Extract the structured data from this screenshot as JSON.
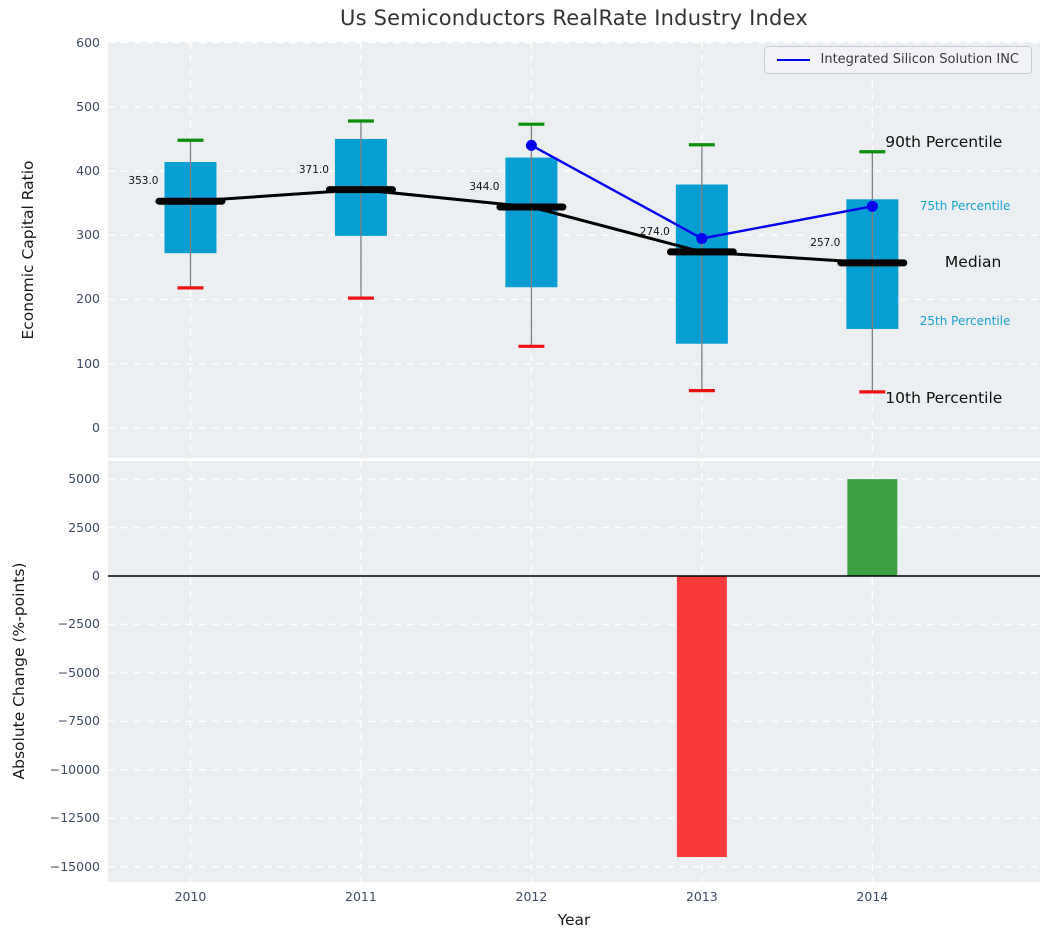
{
  "title": "Us Semiconductors RealRate Industry Index",
  "legend": {
    "label": "Integrated Silicon Solution INC"
  },
  "colors": {
    "panel_bg": "#eceff1",
    "grid": "#ffffff",
    "tick_text": "#3d4c63",
    "box_fill": "#079fd3",
    "whisker": "#808080",
    "cap_top": "#0a8f0a",
    "cap_bottom": "#ee1111",
    "median_line": "#000000",
    "company_line": "#0000ee",
    "bar_negative": "#fa3b3b",
    "bar_positive": "#3da043",
    "annotation_minor": "#17a2cf",
    "zero_line": "#000000"
  },
  "chart_data": [
    {
      "type": "boxplot+line",
      "title": "Us Semiconductors RealRate Industry Index",
      "ylabel": "Economic Capital Ratio",
      "yticks": [
        0,
        100,
        200,
        300,
        400,
        500,
        600
      ],
      "ylim": [
        -47,
        601
      ],
      "grid": "white dashed on gray panel",
      "categories": [
        "2010",
        "2011",
        "2012",
        "2013",
        "2014"
      ],
      "boxes": [
        {
          "year": "2010",
          "p10": 218,
          "q1": 272,
          "median": 353,
          "q3": 414,
          "p90": 448
        },
        {
          "year": "2011",
          "p10": 202,
          "q1": 299,
          "median": 371,
          "q3": 450,
          "p90": 478
        },
        {
          "year": "2012",
          "p10": 127,
          "q1": 219,
          "median": 344,
          "q3": 421,
          "p90": 473
        },
        {
          "year": "2013",
          "p10": 58,
          "q1": 131,
          "median": 274,
          "q3": 379,
          "p90": 441
        },
        {
          "year": "2014",
          "p10": 56,
          "q1": 154,
          "median": 257,
          "q3": 356,
          "p90": 430
        }
      ],
      "median_labels": [
        "353.0",
        "371.0",
        "344.0",
        "274.0",
        "257.0"
      ],
      "series": [
        {
          "name": "Integrated Silicon Solution INC",
          "x": [
            "2012",
            "2013",
            "2014"
          ],
          "values": [
            440,
            295,
            345
          ]
        }
      ],
      "annotations": [
        {
          "text": "90th Percentile",
          "value": 446,
          "style": "major",
          "xfrac": 0.834
        },
        {
          "text": "75th Percentile",
          "value": 346,
          "style": "minor",
          "xfrac": 0.871
        },
        {
          "text": "Median",
          "value": 259,
          "style": "major",
          "xfrac": 0.898
        },
        {
          "text": "25th Percentile",
          "value": 167,
          "style": "minor",
          "xfrac": 0.871
        },
        {
          "text": "10th Percentile",
          "value": 46,
          "style": "major",
          "xfrac": 0.834
        }
      ],
      "legend": {
        "label": "Integrated Silicon Solution INC",
        "position": "upper right"
      }
    },
    {
      "type": "bar",
      "ylabel": "Absolute Change (%-points)",
      "xlabel": "Year",
      "yticks": [
        5000,
        2500,
        0,
        -2500,
        -5000,
        -7500,
        -10000,
        -12500,
        -15000
      ],
      "ylim": [
        -15790,
        5935
      ],
      "categories": [
        "2010",
        "2011",
        "2012",
        "2013",
        "2014"
      ],
      "values": [
        null,
        null,
        null,
        -14500,
        5000
      ],
      "bar_colors": [
        null,
        null,
        null,
        "#fa3b3b",
        "#3da043"
      ],
      "zero_line": 0
    }
  ]
}
